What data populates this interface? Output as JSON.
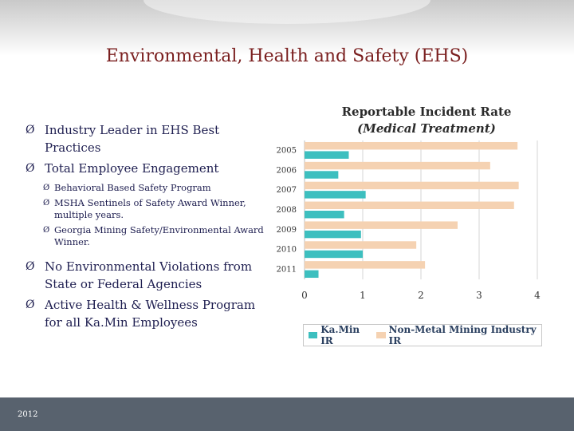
{
  "slide": {
    "title": "Environmental, Health and Safety (EHS)",
    "footer_year": "2012"
  },
  "bullets": [
    {
      "text": "Industry Leader in EHS Best Practices",
      "sub": []
    },
    {
      "text": "Total Employee Engagement",
      "sub": [
        "Behavioral Based Safety Program",
        "MSHA Sentinels of Safety Award Winner, multiple years.",
        "Georgia Mining Safety/Environmental Award Winner."
      ]
    },
    {
      "text": "No Environmental Violations from State or Federal Agencies",
      "sub": []
    },
    {
      "text": "Active Health & Wellness Program for all Ka.Min Employees",
      "sub": []
    }
  ],
  "arrow_glyph": "Ø",
  "sub_arrow_glyph": "Ø",
  "chart_data": {
    "type": "bar",
    "orientation": "horizontal",
    "title": "Reportable Incident Rate",
    "subtitle": "(Medical Treatment)",
    "categories": [
      "2005",
      "2006",
      "2007",
      "2008",
      "2009",
      "2010",
      "2011"
    ],
    "series": [
      {
        "name": "Ka.Min IR",
        "color": "#3dbfbf",
        "values": [
          0.76,
          0.58,
          1.05,
          0.68,
          0.97,
          1.0,
          0.24
        ]
      },
      {
        "name": "Non-Metal Mining Industry IR",
        "color": "#f5d2b2",
        "values": [
          3.66,
          3.19,
          3.68,
          3.6,
          2.63,
          1.92,
          2.07
        ]
      }
    ],
    "xlim": [
      0,
      4
    ],
    "xticks": [
      "0",
      "1",
      "2",
      "3",
      "4"
    ],
    "grid": true,
    "legend_position": "bottom"
  }
}
